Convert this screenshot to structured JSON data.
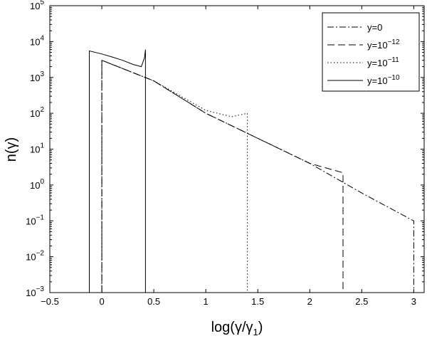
{
  "chart_data": {
    "type": "line",
    "title": "",
    "xlabel": "log(γ/γ1)",
    "xlabel_parts": {
      "main": "log(γ/γ",
      "sub": "1",
      "close": ")"
    },
    "ylabel": "n(γ)",
    "xlim": [
      -0.5,
      3.1
    ],
    "ylim": [
      0.001,
      100000
    ],
    "yscale": "log",
    "grid": false,
    "legend_position": "top-right",
    "x_ticks": [
      {
        "value": -0.5,
        "label": "−0.5"
      },
      {
        "value": 0,
        "label": "0"
      },
      {
        "value": 0.5,
        "label": "0.5"
      },
      {
        "value": 1,
        "label": "1"
      },
      {
        "value": 1.5,
        "label": "1.5"
      },
      {
        "value": 2,
        "label": "2"
      },
      {
        "value": 2.5,
        "label": "2.5"
      },
      {
        "value": 3,
        "label": "3"
      }
    ],
    "y_ticks": [
      {
        "value": 0.001,
        "base": "10",
        "exp": "−3"
      },
      {
        "value": 0.01,
        "base": "10",
        "exp": "−2"
      },
      {
        "value": 0.1,
        "base": "10",
        "exp": "−1"
      },
      {
        "value": 1,
        "base": "10",
        "exp": "0"
      },
      {
        "value": 10,
        "base": "10",
        "exp": "1"
      },
      {
        "value": 100,
        "base": "10",
        "exp": "2"
      },
      {
        "value": 1000,
        "base": "10",
        "exp": "3"
      },
      {
        "value": 10000,
        "base": "10",
        "exp": "4"
      },
      {
        "value": 100000,
        "base": "10",
        "exp": "5"
      }
    ],
    "series": [
      {
        "legend_base": "y=0",
        "legend_exp": "",
        "dash": "9,3,2,3",
        "x": [
          0,
          0,
          0.5,
          1,
          1.5,
          2,
          2.5,
          3,
          3
        ],
        "y": [
          0.001,
          3000,
          800,
          100,
          20,
          4,
          0.6,
          0.1,
          0.001
        ]
      },
      {
        "legend_base": "y=10",
        "legend_exp": "−12",
        "dash": "10,5",
        "x": [
          0,
          0,
          0.5,
          1,
          1.5,
          2,
          2.32,
          2.32
        ],
        "y": [
          0.001,
          3000,
          800,
          100,
          20,
          4,
          2.2,
          0.001
        ]
      },
      {
        "legend_base": "y=10",
        "legend_exp": "−11",
        "dash": "1.5,3",
        "x": [
          0,
          0,
          0.5,
          1,
          1.25,
          1.4,
          1.4
        ],
        "y": [
          0.001,
          3000,
          800,
          120,
          80,
          100,
          0.001
        ]
      },
      {
        "legend_base": "y=10",
        "legend_exp": "−10",
        "dash": "",
        "x": [
          -0.12,
          -0.12,
          0,
          0.1,
          0.2,
          0.3,
          0.38,
          0.41,
          0.42,
          0.42
        ],
        "y": [
          0.001,
          5500,
          4500,
          3700,
          3000,
          2300,
          2000,
          3500,
          6000,
          0.001
        ]
      }
    ]
  }
}
